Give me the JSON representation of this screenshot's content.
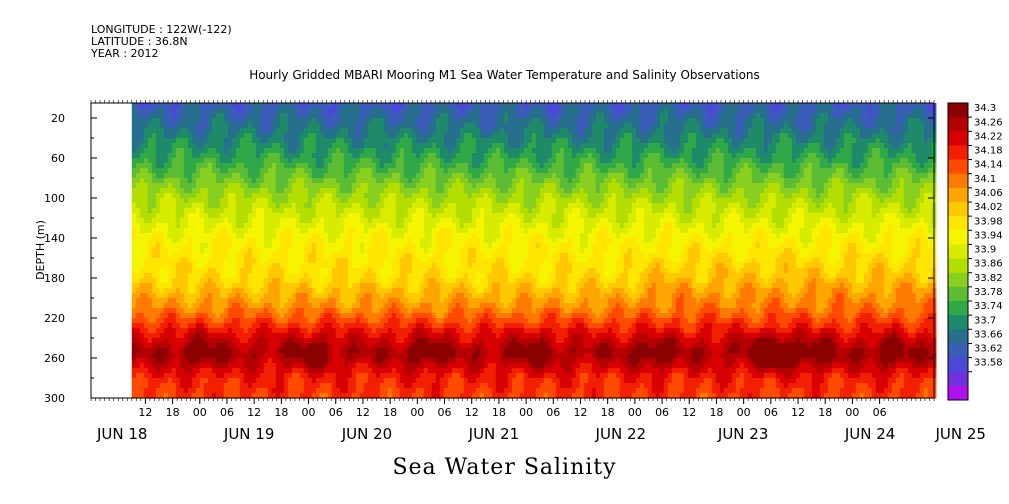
{
  "header": {
    "longitude": "LONGITUDE : 122W(-122)",
    "latitude": "LATITUDE : 36.8N",
    "year": "YEAR : 2012"
  },
  "chart_data": {
    "type": "heatmap",
    "title": "Hourly Gridded MBARI Mooring M1 Sea Water Temperature and Salinity Observations",
    "xlabel": "Sea Water Salinity",
    "ylabel": "DEPTH (m)",
    "y_ticks": [
      20,
      60,
      100,
      140,
      180,
      220,
      260,
      300
    ],
    "ylim": [
      300,
      5
    ],
    "y_inverted": true,
    "x_range_hours": [
      0,
      186
    ],
    "data_start_hour": 9,
    "hour_tick_labels": [
      "12",
      "18",
      "00",
      "06",
      "12",
      "18",
      "00",
      "06",
      "12",
      "18",
      "00",
      "06",
      "12",
      "18",
      "00",
      "06",
      "12",
      "18",
      "00",
      "06",
      "12",
      "18",
      "00",
      "06",
      "12",
      "18",
      "00",
      "06"
    ],
    "hour_tick_offsets_h": [
      12,
      18,
      24,
      30,
      36,
      42,
      48,
      54,
      60,
      66,
      72,
      78,
      84,
      90,
      96,
      102,
      108,
      114,
      120,
      126,
      132,
      138,
      144,
      150,
      156,
      162,
      168,
      174
    ],
    "date_labels": [
      "JUN 18",
      "JUN 19",
      "JUN 20",
      "JUN 21",
      "JUN 22",
      "JUN 23",
      "JUN 24",
      "JUN 25"
    ],
    "date_offsets_h": [
      0,
      28,
      54,
      82,
      110,
      137,
      165,
      185
    ],
    "colorbar": {
      "levels": [
        34.3,
        34.26,
        34.22,
        34.18,
        34.14,
        34.1,
        34.06,
        34.02,
        33.98,
        33.94,
        33.9,
        33.86,
        33.82,
        33.78,
        33.74,
        33.7,
        33.66,
        33.62,
        33.58
      ],
      "colors": [
        "#8b0000",
        "#b40000",
        "#d80000",
        "#f22000",
        "#ff4a00",
        "#ff7a00",
        "#ffa500",
        "#ffc800",
        "#ffe600",
        "#f5f500",
        "#d8ec00",
        "#b4de00",
        "#88cf20",
        "#5cbd35",
        "#30a848",
        "#1f8a6a",
        "#26708e",
        "#3a5db8",
        "#4a48d8",
        "#7030e0",
        "#b010f0"
      ],
      "min": 33.58,
      "max": 34.3
    },
    "salinity_profile": [
      {
        "depth": 5,
        "salinity": 33.7
      },
      {
        "depth": 30,
        "salinity": 33.74
      },
      {
        "depth": 60,
        "salinity": 33.8
      },
      {
        "depth": 100,
        "salinity": 33.9
      },
      {
        "depth": 140,
        "salinity": 33.98
      },
      {
        "depth": 180,
        "salinity": 34.02
      },
      {
        "depth": 210,
        "salinity": 34.1
      },
      {
        "depth": 235,
        "salinity": 34.2
      },
      {
        "depth": 255,
        "salinity": 34.26
      },
      {
        "depth": 280,
        "salinity": 34.18
      },
      {
        "depth": 300,
        "salinity": 34.16
      }
    ],
    "deep_maxima_hours": [
      24,
      49,
      74,
      98,
      124,
      148,
      152,
      160,
      176
    ]
  }
}
